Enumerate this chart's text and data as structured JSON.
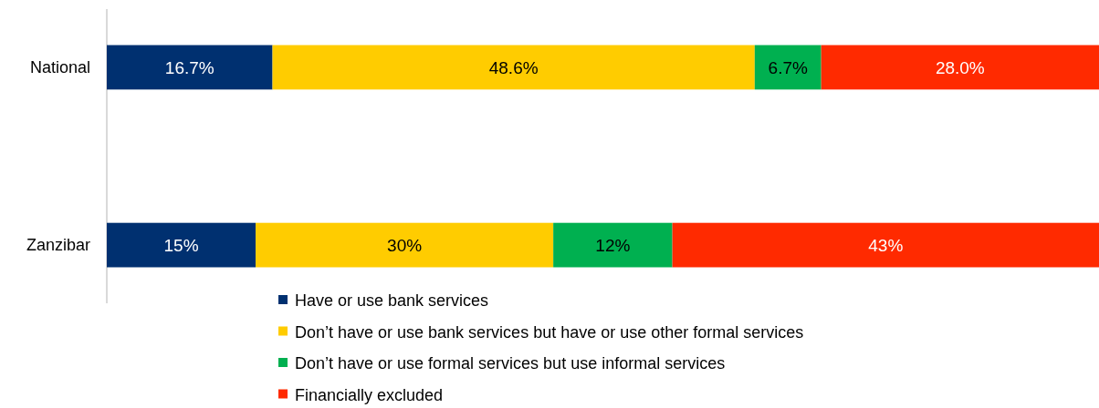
{
  "chart_data": {
    "type": "bar",
    "orientation": "horizontal",
    "stacked": true,
    "categories": [
      "National",
      "Zanzibar"
    ],
    "xlim": [
      0,
      100
    ],
    "tick_labels": "y",
    "legend": "bottom",
    "grid": false,
    "series": [
      {
        "name": "Have or use bank services",
        "color": "#003070",
        "values": [
          16.7,
          15
        ],
        "value_labels": [
          "16.7%",
          "15%"
        ]
      },
      {
        "name": "Don’t  have or use bank services but have or use other formal services",
        "color": "#ffcc00",
        "values": [
          48.6,
          30
        ],
        "value_labels": [
          "48.6%",
          "30%"
        ]
      },
      {
        "name": "Don’t  have or use formal services but use informal services",
        "color": "#00b050",
        "values": [
          6.7,
          12
        ],
        "value_labels": [
          "6.7%",
          "12%"
        ]
      },
      {
        "name": "Financially excluded",
        "color": "#ff2a00",
        "values": [
          28.0,
          43
        ],
        "value_labels": [
          "28.0%",
          "43%"
        ]
      }
    ]
  }
}
